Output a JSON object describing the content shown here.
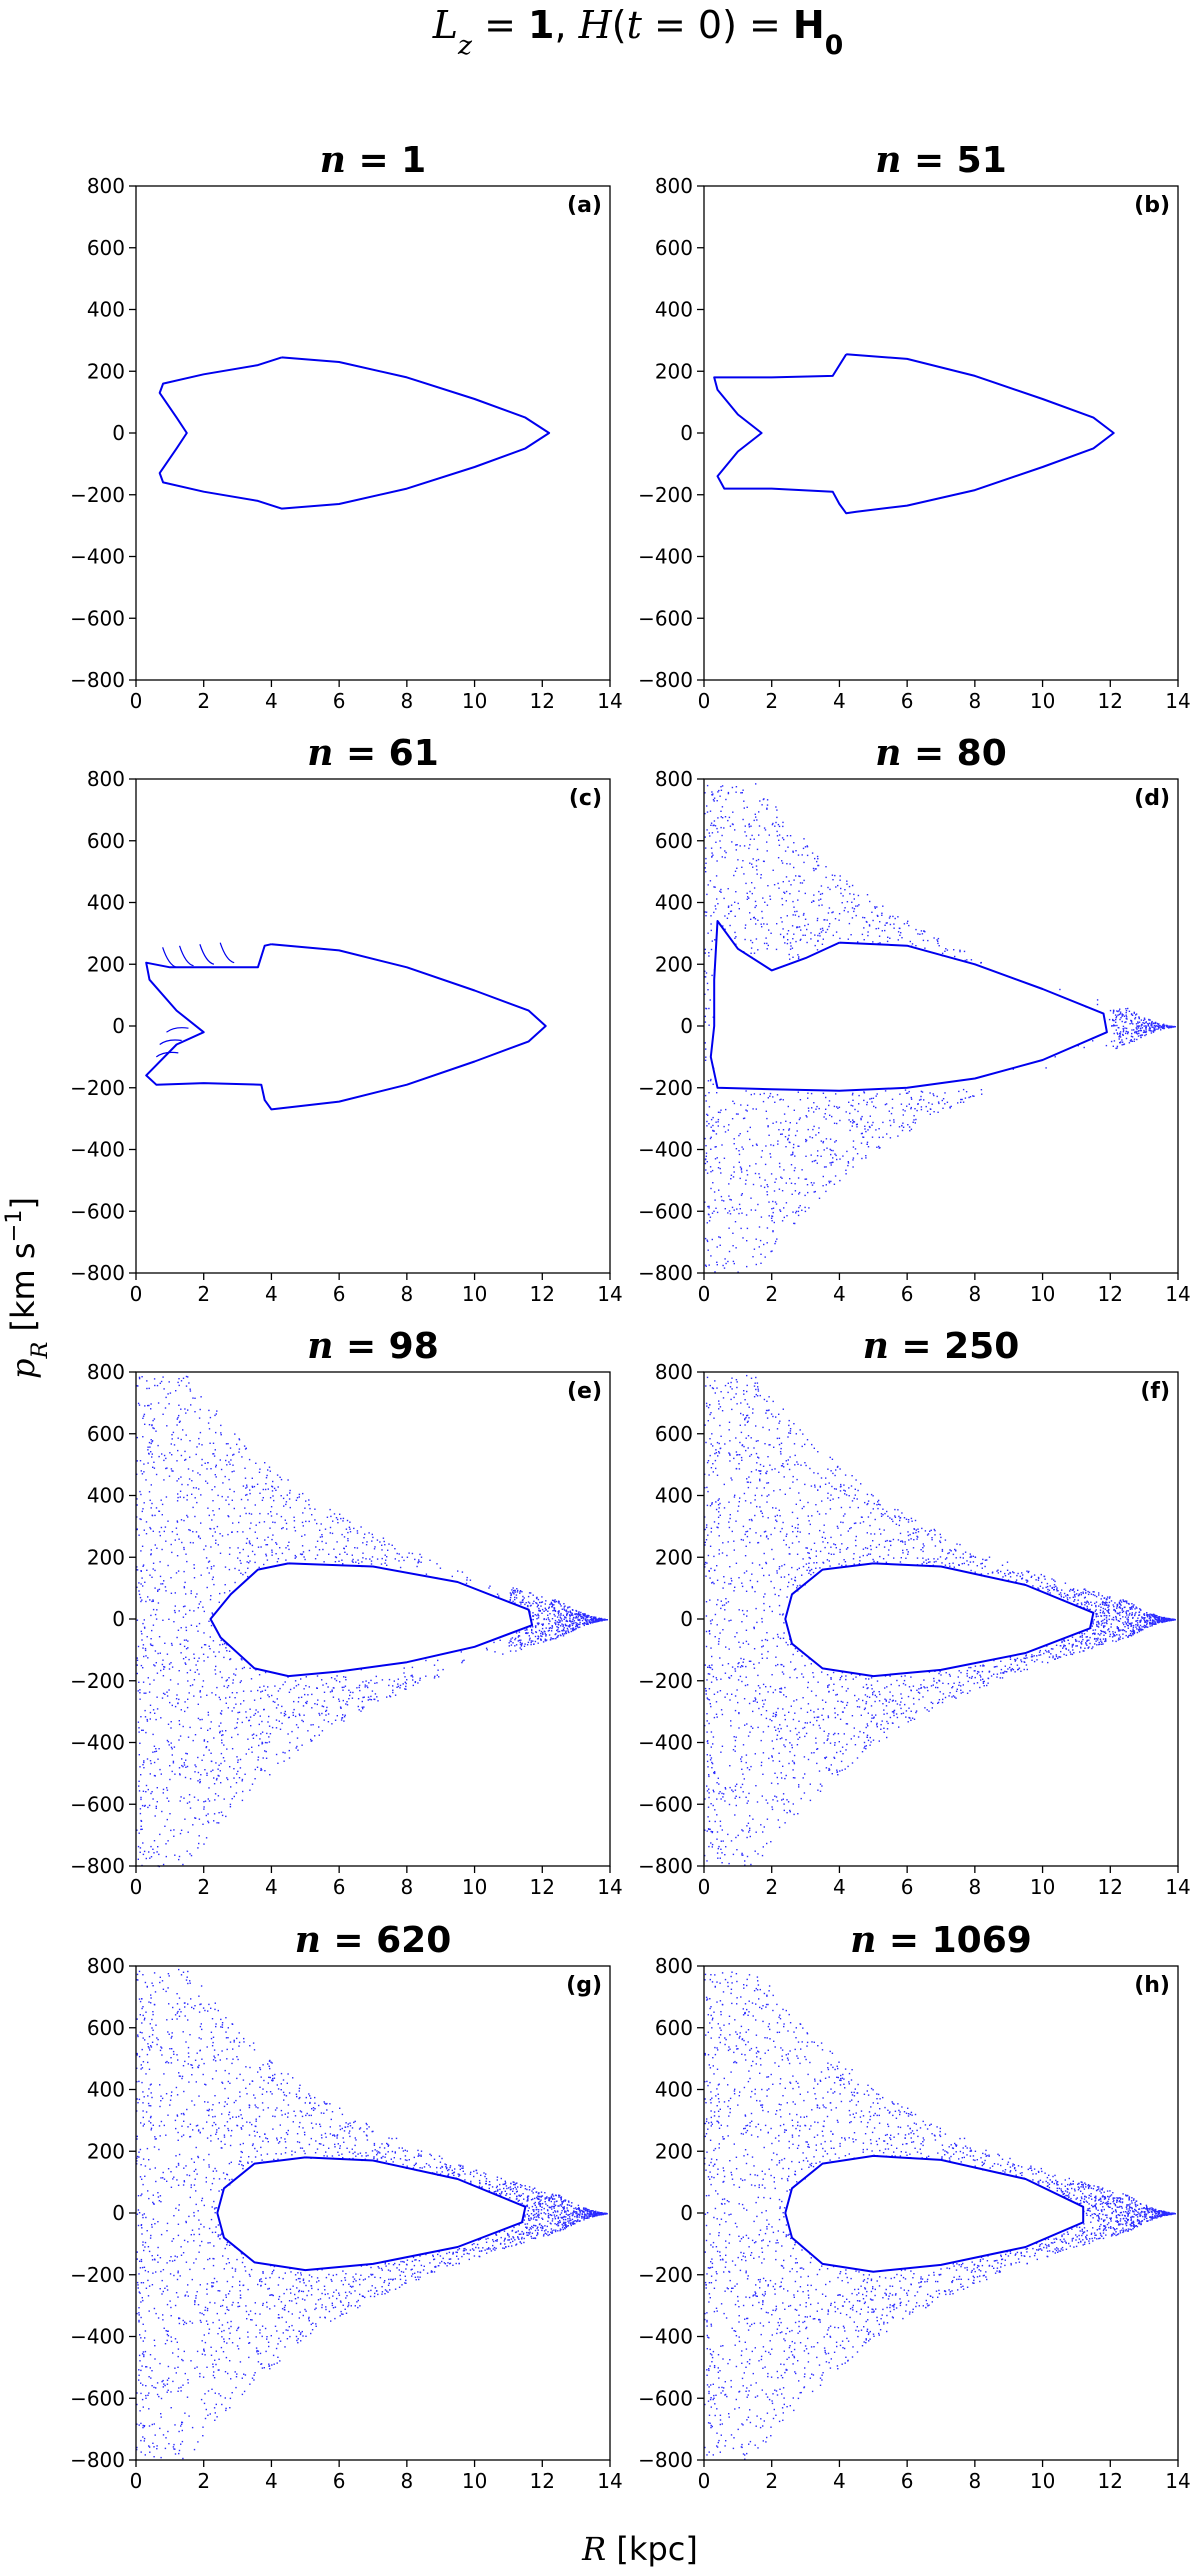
{
  "figure": {
    "title_parts": [
      {
        "text": "L",
        "style": "it"
      },
      {
        "text": "z",
        "style": "it-sub"
      },
      {
        "text": " = ",
        "style": ""
      },
      {
        "text": "1",
        "style": "bd"
      },
      {
        "text": ", ",
        "style": ""
      },
      {
        "text": "H",
        "style": "it"
      },
      {
        "text": "(",
        "style": ""
      },
      {
        "text": "t",
        "style": "it"
      },
      {
        "text": " = 0) = ",
        "style": ""
      },
      {
        "text": "H",
        "style": "bd"
      },
      {
        "text": "0",
        "style": "bd-sub"
      }
    ],
    "xlabel_parts": [
      {
        "text": "R",
        "style": "it"
      },
      {
        "text": " [kpc]",
        "style": ""
      }
    ],
    "ylabel_parts": [
      {
        "text": "p",
        "style": "it"
      },
      {
        "text": "R",
        "style": "it-sub"
      },
      {
        "text": " [km s",
        "style": ""
      },
      {
        "text": "−1",
        "style": "sup"
      },
      {
        "text": "]",
        "style": ""
      }
    ],
    "colors": {
      "points": "#0000ff",
      "frame": "#000000",
      "background": "#ffffff"
    }
  },
  "chart_data": [
    {
      "type": "scatter",
      "letter": "(a)",
      "title_n": "1",
      "state": "curve",
      "xlim": [
        0,
        14
      ],
      "ylim": [
        -800,
        800
      ],
      "xticks": [
        0,
        2,
        4,
        6,
        8,
        10,
        12,
        14
      ],
      "yticks": [
        800,
        600,
        400,
        200,
        0,
        -200,
        -400,
        -600,
        -800
      ],
      "grid": false,
      "curve": [
        [
          4.3,
          245
        ],
        [
          6,
          230
        ],
        [
          8,
          180
        ],
        [
          10,
          110
        ],
        [
          11.5,
          50
        ],
        [
          12.2,
          0
        ],
        [
          11.5,
          -50
        ],
        [
          10,
          -110
        ],
        [
          8,
          -180
        ],
        [
          6,
          -230
        ],
        [
          4.3,
          -245
        ],
        [
          3.6,
          -220
        ],
        [
          2,
          -190
        ],
        [
          0.8,
          -160
        ],
        [
          0.7,
          -130
        ],
        [
          1.2,
          -50
        ],
        [
          1.5,
          0
        ],
        [
          1.2,
          50
        ],
        [
          0.7,
          130
        ],
        [
          0.8,
          160
        ],
        [
          2,
          190
        ],
        [
          3.6,
          220
        ],
        [
          4.3,
          245
        ]
      ]
    },
    {
      "type": "scatter",
      "letter": "(b)",
      "title_n": "51",
      "state": "curve",
      "xlim": [
        0,
        14
      ],
      "ylim": [
        -800,
        800
      ],
      "xticks": [
        0,
        2,
        4,
        6,
        8,
        10,
        12,
        14
      ],
      "yticks": [
        800,
        600,
        400,
        200,
        0,
        -200,
        -400,
        -600,
        -800
      ],
      "grid": false,
      "curve": [
        [
          4.2,
          255
        ],
        [
          6,
          240
        ],
        [
          8,
          185
        ],
        [
          10,
          110
        ],
        [
          11.5,
          50
        ],
        [
          12.1,
          0
        ],
        [
          11.5,
          -50
        ],
        [
          10,
          -110
        ],
        [
          8,
          -185
        ],
        [
          6,
          -235
        ],
        [
          4.5,
          -255
        ],
        [
          4.2,
          -260
        ],
        [
          4.0,
          -230
        ],
        [
          3.8,
          -190
        ],
        [
          2,
          -180
        ],
        [
          0.6,
          -180
        ],
        [
          0.4,
          -140
        ],
        [
          1,
          -60
        ],
        [
          1.7,
          0
        ],
        [
          1,
          60
        ],
        [
          0.4,
          140
        ],
        [
          0.3,
          180
        ],
        [
          2,
          180
        ],
        [
          3.8,
          185
        ],
        [
          4.2,
          255
        ]
      ]
    },
    {
      "type": "scatter",
      "letter": "(c)",
      "title_n": "61",
      "state": "curve-filaments",
      "xlim": [
        0,
        14
      ],
      "ylim": [
        -800,
        800
      ],
      "xticks": [
        0,
        2,
        4,
        6,
        8,
        10,
        12,
        14
      ],
      "yticks": [
        800,
        600,
        400,
        200,
        0,
        -200,
        -400,
        -600,
        -800
      ],
      "grid": false,
      "curve": [
        [
          4.0,
          265
        ],
        [
          6,
          245
        ],
        [
          8,
          190
        ],
        [
          10,
          115
        ],
        [
          11.6,
          50
        ],
        [
          12.1,
          0
        ],
        [
          11.6,
          -50
        ],
        [
          10,
          -115
        ],
        [
          8,
          -190
        ],
        [
          6,
          -245
        ],
        [
          4.0,
          -270
        ],
        [
          3.8,
          -240
        ],
        [
          3.7,
          -190
        ],
        [
          2,
          -185
        ],
        [
          0.6,
          -190
        ],
        [
          0.3,
          -160
        ],
        [
          1.2,
          -60
        ],
        [
          2.0,
          -20
        ],
        [
          1.2,
          50
        ],
        [
          0.4,
          150
        ],
        [
          0.3,
          205
        ],
        [
          1,
          190
        ],
        [
          2,
          190
        ],
        [
          3.6,
          190
        ],
        [
          3.8,
          260
        ],
        [
          4.0,
          265
        ]
      ]
    },
    {
      "type": "scatter",
      "letter": "(d)",
      "title_n": "80",
      "state": "mixing-early",
      "xlim": [
        0,
        14
      ],
      "ylim": [
        -800,
        800
      ],
      "xticks": [
        0,
        2,
        4,
        6,
        8,
        10,
        12,
        14
      ],
      "yticks": [
        800,
        600,
        400,
        200,
        0,
        -200,
        -400,
        -600,
        -800
      ],
      "grid": false,
      "curve": [
        [
          4.0,
          270
        ],
        [
          6,
          260
        ],
        [
          8,
          200
        ],
        [
          10,
          120
        ],
        [
          11.8,
          40
        ],
        [
          11.9,
          -20
        ],
        [
          10,
          -110
        ],
        [
          8,
          -170
        ],
        [
          6,
          -200
        ],
        [
          4,
          -210
        ],
        [
          2,
          -205
        ],
        [
          0.4,
          -200
        ],
        [
          0.2,
          -100
        ],
        [
          0.3,
          0
        ],
        [
          0.3,
          150
        ],
        [
          0.4,
          340
        ],
        [
          1.0,
          250
        ],
        [
          2.0,
          180
        ],
        [
          3,
          220
        ],
        [
          4.0,
          270
        ]
      ]
    },
    {
      "type": "scatter",
      "letter": "(e)",
      "title_n": "98",
      "state": "mixing-mid",
      "xlim": [
        0,
        14
      ],
      "ylim": [
        -800,
        800
      ],
      "xticks": [
        0,
        2,
        4,
        6,
        8,
        10,
        12,
        14
      ],
      "yticks": [
        800,
        600,
        400,
        200,
        0,
        -200,
        -400,
        -600,
        -800
      ],
      "grid": false,
      "curve": [
        [
          4.5,
          180
        ],
        [
          7,
          170
        ],
        [
          9.5,
          120
        ],
        [
          11.6,
          30
        ],
        [
          11.7,
          -20
        ],
        [
          10,
          -90
        ],
        [
          8,
          -140
        ],
        [
          6,
          -170
        ],
        [
          4.5,
          -185
        ],
        [
          3.5,
          -160
        ],
        [
          2.5,
          -60
        ],
        [
          2.2,
          0
        ],
        [
          2.8,
          80
        ],
        [
          3.6,
          160
        ],
        [
          4.5,
          180
        ]
      ]
    },
    {
      "type": "scatter",
      "letter": "(f)",
      "title_n": "250",
      "state": "chaotic",
      "xlim": [
        0,
        14
      ],
      "ylim": [
        -800,
        800
      ],
      "xticks": [
        0,
        2,
        4,
        6,
        8,
        10,
        12,
        14
      ],
      "yticks": [
        800,
        600,
        400,
        200,
        0,
        -200,
        -400,
        -600,
        -800
      ],
      "grid": false,
      "curve": [
        [
          5,
          180
        ],
        [
          7,
          170
        ],
        [
          9.5,
          110
        ],
        [
          11.5,
          20
        ],
        [
          11.4,
          -30
        ],
        [
          9.5,
          -110
        ],
        [
          7,
          -165
        ],
        [
          5,
          -185
        ],
        [
          3.5,
          -160
        ],
        [
          2.6,
          -80
        ],
        [
          2.4,
          0
        ],
        [
          2.6,
          80
        ],
        [
          3.5,
          160
        ],
        [
          5,
          180
        ]
      ]
    },
    {
      "type": "scatter",
      "letter": "(g)",
      "title_n": "620",
      "state": "chaotic",
      "xlim": [
        0,
        14
      ],
      "ylim": [
        -800,
        800
      ],
      "xticks": [
        0,
        2,
        4,
        6,
        8,
        10,
        12,
        14
      ],
      "yticks": [
        800,
        600,
        400,
        200,
        0,
        -200,
        -400,
        -600,
        -800
      ],
      "grid": false,
      "curve": [
        [
          5,
          180
        ],
        [
          7,
          170
        ],
        [
          9.5,
          110
        ],
        [
          11.5,
          20
        ],
        [
          11.4,
          -30
        ],
        [
          9.5,
          -110
        ],
        [
          7,
          -165
        ],
        [
          5,
          -185
        ],
        [
          3.5,
          -160
        ],
        [
          2.6,
          -80
        ],
        [
          2.4,
          0
        ],
        [
          2.6,
          80
        ],
        [
          3.5,
          160
        ],
        [
          5,
          180
        ]
      ]
    },
    {
      "type": "scatter",
      "letter": "(h)",
      "title_n": "1069",
      "state": "chaotic",
      "xlim": [
        0,
        14
      ],
      "ylim": [
        -800,
        800
      ],
      "xticks": [
        0,
        2,
        4,
        6,
        8,
        10,
        12,
        14
      ],
      "yticks": [
        800,
        600,
        400,
        200,
        0,
        -200,
        -400,
        -600,
        -800
      ],
      "grid": false,
      "curve": [
        [
          5,
          185
        ],
        [
          7,
          172
        ],
        [
          9.5,
          110
        ],
        [
          11.2,
          20
        ],
        [
          11.2,
          -30
        ],
        [
          9.5,
          -110
        ],
        [
          7,
          -168
        ],
        [
          5,
          -190
        ],
        [
          3.5,
          -165
        ],
        [
          2.6,
          -80
        ],
        [
          2.4,
          0
        ],
        [
          2.6,
          80
        ],
        [
          3.5,
          160
        ],
        [
          5,
          185
        ]
      ]
    }
  ]
}
